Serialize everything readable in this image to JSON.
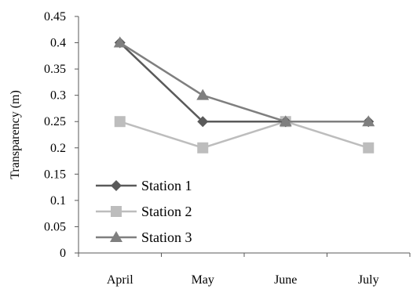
{
  "chart_data": {
    "type": "line",
    "categories": [
      "April",
      "May",
      "June",
      "July"
    ],
    "series": [
      {
        "name": "Station 1",
        "values": [
          0.4,
          0.25,
          0.25,
          0.25
        ],
        "color": "#5a5a5a",
        "marker": "diamond"
      },
      {
        "name": "Station 2",
        "values": [
          0.25,
          0.2,
          0.25,
          0.2
        ],
        "color": "#bdbdbd",
        "marker": "square"
      },
      {
        "name": "Station 3",
        "values": [
          0.4,
          0.3,
          0.25,
          0.25
        ],
        "color": "#7f7f7f",
        "marker": "triangle"
      }
    ],
    "ylabel": "Transparency (m)",
    "ylim": [
      0,
      0.45
    ],
    "yticks": [
      "0",
      "0.05",
      "0.1",
      "0.15",
      "0.2",
      "0.25",
      "0.3",
      "0.35",
      "0.4",
      "0.45"
    ],
    "grid": false,
    "legend_position": "bottom-left"
  }
}
